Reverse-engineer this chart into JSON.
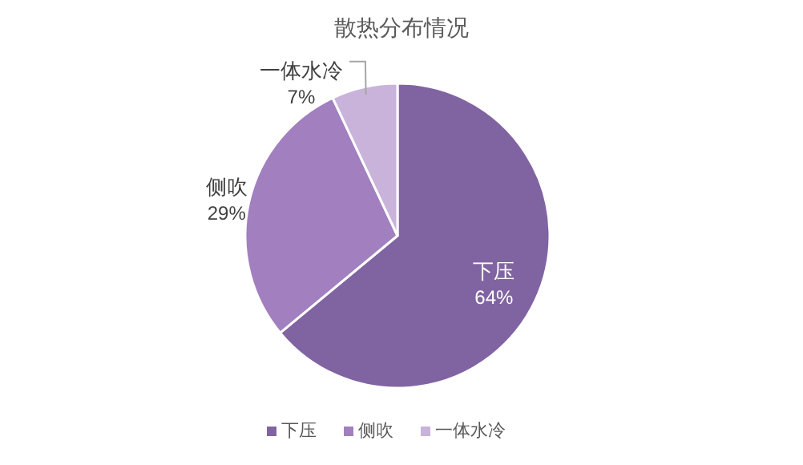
{
  "chart_data": {
    "type": "pie",
    "title": "散热分布情况",
    "categories": [
      "下压",
      "侧吹",
      "一体水冷"
    ],
    "values": [
      64,
      29,
      7
    ],
    "colors": [
      "#8064a2",
      "#a27fbf",
      "#c9b3da"
    ],
    "value_labels": [
      "64%",
      "29%",
      "7%"
    ],
    "legend": "bottom"
  }
}
